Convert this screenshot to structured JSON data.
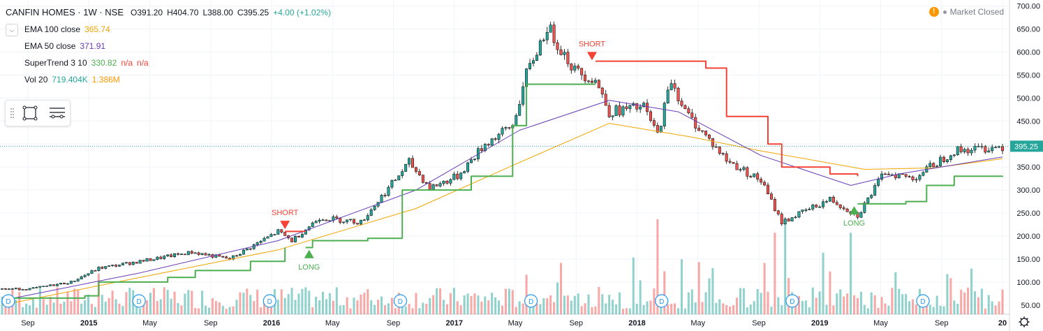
{
  "header": {
    "symbol": "CANFIN HOMES",
    "interval": "1W",
    "exchange": "NSE",
    "open": "O391.20",
    "high": "H404.70",
    "low": "L388.00",
    "close": "C395.25",
    "change": "+4.00 (+1.02%)",
    "market_status": "Market Closed"
  },
  "indicators": [
    {
      "name": "EMA 100 close",
      "value": "365.74",
      "color": "#f0a500"
    },
    {
      "name": "EMA 50 close",
      "value": "371.91",
      "color": "#673ab7"
    },
    {
      "name": "SuperTrend 3 10",
      "value": "330.82",
      "value2": "n/a",
      "value3": "n/a",
      "color": "#4caf50",
      "color2": "#f44336"
    },
    {
      "name": "Vol 20",
      "value": "719.404K",
      "value2": "1.386M",
      "color": "#26a69a",
      "color2": "#ff9800"
    }
  ],
  "chart_data": {
    "type": "candlestick",
    "price_axis": {
      "ticks": [
        50,
        100,
        150,
        200,
        250,
        300,
        350,
        400,
        450,
        500,
        550,
        600,
        650,
        700
      ],
      "tick_labels": [
        "50.00",
        "100.00",
        "150.00",
        "200.00",
        "250.00",
        "300.00",
        "350.00",
        "400.00",
        "450.00",
        "500.00",
        "550.00",
        "600.00",
        "650.00",
        "700.00"
      ],
      "min": 30,
      "max": 710
    },
    "last_price": {
      "value": 395.25,
      "label": "395.25",
      "color": "#26a69a"
    },
    "time_axis": {
      "labels": [
        "Sep",
        "2015",
        "May",
        "Sep",
        "2016",
        "May",
        "Sep",
        "2017",
        "May",
        "Sep",
        "2018",
        "May",
        "Sep",
        "2019",
        "May",
        "Sep",
        "20"
      ],
      "bold": [
        "2015",
        "2016",
        "2017",
        "2018",
        "2019",
        "20"
      ]
    },
    "price_keyframes": [
      {
        "t": 0,
        "v": 85
      },
      {
        "t": 8,
        "v": 85
      },
      {
        "t": 20,
        "v": 100
      },
      {
        "t": 28,
        "v": 130
      },
      {
        "t": 40,
        "v": 145
      },
      {
        "t": 55,
        "v": 165
      },
      {
        "t": 66,
        "v": 150
      },
      {
        "t": 80,
        "v": 210
      },
      {
        "t": 84,
        "v": 190
      },
      {
        "t": 92,
        "v": 240
      },
      {
        "t": 104,
        "v": 230
      },
      {
        "t": 118,
        "v": 360
      },
      {
        "t": 124,
        "v": 305
      },
      {
        "t": 132,
        "v": 330
      },
      {
        "t": 140,
        "v": 400
      },
      {
        "t": 148,
        "v": 440
      },
      {
        "t": 152,
        "v": 550
      },
      {
        "t": 158,
        "v": 655
      },
      {
        "t": 166,
        "v": 560
      },
      {
        "t": 172,
        "v": 540
      },
      {
        "t": 176,
        "v": 470
      },
      {
        "t": 186,
        "v": 480
      },
      {
        "t": 190,
        "v": 420
      },
      {
        "t": 194,
        "v": 540
      },
      {
        "t": 198,
        "v": 470
      },
      {
        "t": 210,
        "v": 365
      },
      {
        "t": 220,
        "v": 320
      },
      {
        "t": 226,
        "v": 230
      },
      {
        "t": 240,
        "v": 280
      },
      {
        "t": 248,
        "v": 245
      },
      {
        "t": 256,
        "v": 340
      },
      {
        "t": 264,
        "v": 325
      },
      {
        "t": 276,
        "v": 385
      },
      {
        "t": 290,
        "v": 395
      }
    ],
    "ema100": [
      {
        "t": 0,
        "v": 50
      },
      {
        "t": 40,
        "v": 110
      },
      {
        "t": 80,
        "v": 170
      },
      {
        "t": 120,
        "v": 260
      },
      {
        "t": 150,
        "v": 360
      },
      {
        "t": 176,
        "v": 445
      },
      {
        "t": 200,
        "v": 415
      },
      {
        "t": 220,
        "v": 385
      },
      {
        "t": 250,
        "v": 345
      },
      {
        "t": 270,
        "v": 348
      },
      {
        "t": 290,
        "v": 368
      }
    ],
    "ema50": [
      {
        "t": 0,
        "v": 60
      },
      {
        "t": 40,
        "v": 120
      },
      {
        "t": 80,
        "v": 190
      },
      {
        "t": 120,
        "v": 300
      },
      {
        "t": 150,
        "v": 430
      },
      {
        "t": 176,
        "v": 495
      },
      {
        "t": 196,
        "v": 470
      },
      {
        "t": 220,
        "v": 375
      },
      {
        "t": 246,
        "v": 310
      },
      {
        "t": 260,
        "v": 335
      },
      {
        "t": 290,
        "v": 372
      }
    ],
    "supertrend_up": [
      [
        {
          "t": 0,
          "v": 65
        },
        {
          "t": 24,
          "v": 70
        },
        {
          "t": 28,
          "v": 100
        },
        {
          "t": 48,
          "v": 110
        },
        {
          "t": 56,
          "v": 125
        },
        {
          "t": 72,
          "v": 145
        },
        {
          "t": 82,
          "v": 175
        }
      ],
      [
        {
          "t": 88,
          "v": 175
        },
        {
          "t": 90,
          "v": 190
        },
        {
          "t": 106,
          "v": 195
        },
        {
          "t": 116,
          "v": 300
        },
        {
          "t": 136,
          "v": 330
        },
        {
          "t": 148,
          "v": 440
        },
        {
          "t": 152,
          "v": 530
        },
        {
          "t": 172,
          "v": 530
        }
      ],
      [
        {
          "t": 248,
          "v": 270
        },
        {
          "t": 262,
          "v": 275
        },
        {
          "t": 268,
          "v": 310
        },
        {
          "t": 276,
          "v": 330
        },
        {
          "t": 290,
          "v": 331
        }
      ]
    ],
    "supertrend_down": [
      [
        {
          "t": 82,
          "v": 210
        },
        {
          "t": 88,
          "v": 210
        }
      ],
      [
        {
          "t": 172,
          "v": 580
        },
        {
          "t": 204,
          "v": 565
        },
        {
          "t": 210,
          "v": 460
        },
        {
          "t": 222,
          "v": 400
        },
        {
          "t": 226,
          "v": 350
        },
        {
          "t": 240,
          "v": 335
        },
        {
          "t": 248,
          "v": 330
        }
      ]
    ],
    "signals": [
      {
        "type": "SHORT",
        "t": 82,
        "v": 215,
        "color": "#f44336"
      },
      {
        "type": "LONG",
        "t": 89,
        "v": 170,
        "color": "#4caf50"
      },
      {
        "type": "SHORT",
        "t": 171,
        "v": 582,
        "color": "#f44336"
      },
      {
        "type": "LONG",
        "t": 247,
        "v": 265,
        "color": "#4caf50"
      }
    ],
    "dividend_markers": 8,
    "volume_scale_max": 180
  }
}
